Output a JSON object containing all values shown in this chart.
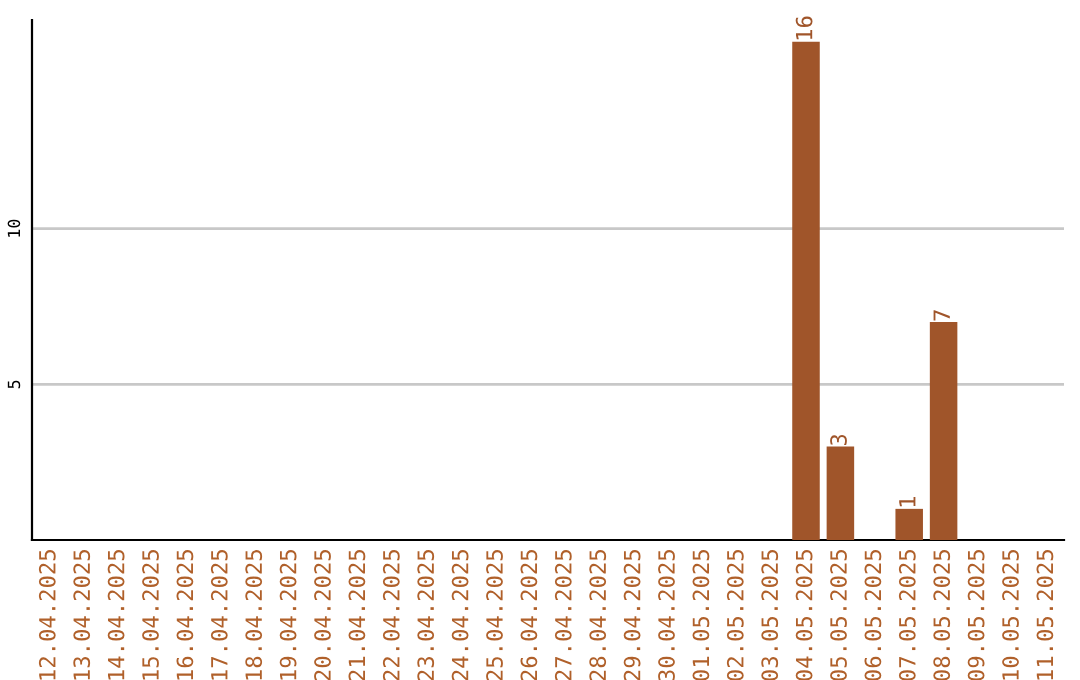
{
  "chart_data": {
    "type": "bar",
    "categories": [
      "12.04.2025",
      "13.04.2025",
      "14.04.2025",
      "15.04.2025",
      "16.04.2025",
      "17.04.2025",
      "18.04.2025",
      "19.04.2025",
      "20.04.2025",
      "21.04.2025",
      "22.04.2025",
      "23.04.2025",
      "24.04.2025",
      "25.04.2025",
      "26.04.2025",
      "27.04.2025",
      "28.04.2025",
      "29.04.2025",
      "30.04.2025",
      "01.05.2025",
      "02.05.2025",
      "03.05.2025",
      "04.05.2025",
      "05.05.2025",
      "06.05.2025",
      "07.05.2025",
      "08.05.2025",
      "09.05.2025",
      "10.05.2025",
      "11.05.2025"
    ],
    "values": [
      0,
      0,
      0,
      0,
      0,
      0,
      0,
      0,
      0,
      0,
      0,
      0,
      0,
      0,
      0,
      0,
      0,
      0,
      0,
      0,
      0,
      0,
      16,
      3,
      0,
      1,
      7,
      0,
      0,
      0
    ],
    "value_labels": [
      null,
      null,
      null,
      null,
      null,
      null,
      null,
      null,
      null,
      null,
      null,
      null,
      null,
      null,
      null,
      null,
      null,
      null,
      null,
      null,
      null,
      null,
      "16",
      "3",
      null,
      "1",
      "7",
      null,
      null,
      null
    ],
    "color": "#a0552a",
    "ylim": [
      0,
      16.7
    ],
    "yticks": [
      5,
      10
    ],
    "grid": "y"
  }
}
